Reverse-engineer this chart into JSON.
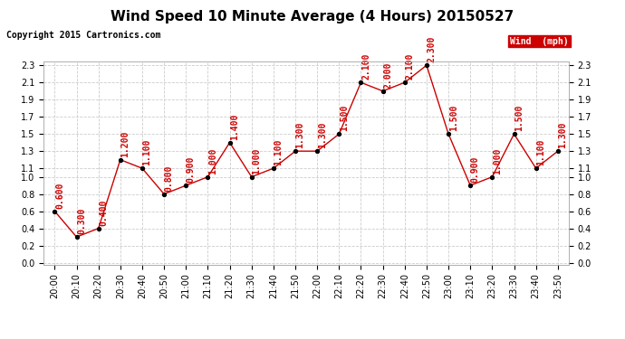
{
  "title": "Wind Speed 10 Minute Average (4 Hours) 20150527",
  "copyright": "Copyright 2015 Cartronics.com",
  "legend_label": "Wind  (mph)",
  "x_labels": [
    "20:00",
    "20:10",
    "20:20",
    "20:30",
    "20:40",
    "20:50",
    "21:00",
    "21:10",
    "21:20",
    "21:30",
    "21:40",
    "21:50",
    "22:00",
    "22:10",
    "22:20",
    "22:30",
    "22:40",
    "22:50",
    "23:00",
    "23:10",
    "23:20",
    "23:30",
    "23:40",
    "23:50"
  ],
  "y_values": [
    0.6,
    0.3,
    0.4,
    1.2,
    1.1,
    0.8,
    0.9,
    1.0,
    1.4,
    1.0,
    1.1,
    1.3,
    1.3,
    1.5,
    2.1,
    2.0,
    2.1,
    2.3,
    1.5,
    0.9,
    1.0,
    1.5,
    1.1,
    1.3
  ],
  "ylim": [
    0.0,
    2.3
  ],
  "yticks": [
    0.0,
    0.2,
    0.4,
    0.6,
    0.8,
    1.0,
    1.1,
    1.3,
    1.5,
    1.7,
    1.9,
    2.1,
    2.3
  ],
  "line_color": "#cc0000",
  "marker_color": "#000000",
  "label_color": "#cc0000",
  "bg_color": "#ffffff",
  "grid_color": "#cccccc",
  "legend_bg": "#cc0000",
  "legend_text_color": "#ffffff",
  "title_fontsize": 11,
  "label_fontsize": 7,
  "tick_fontsize": 7,
  "copyright_fontsize": 7
}
